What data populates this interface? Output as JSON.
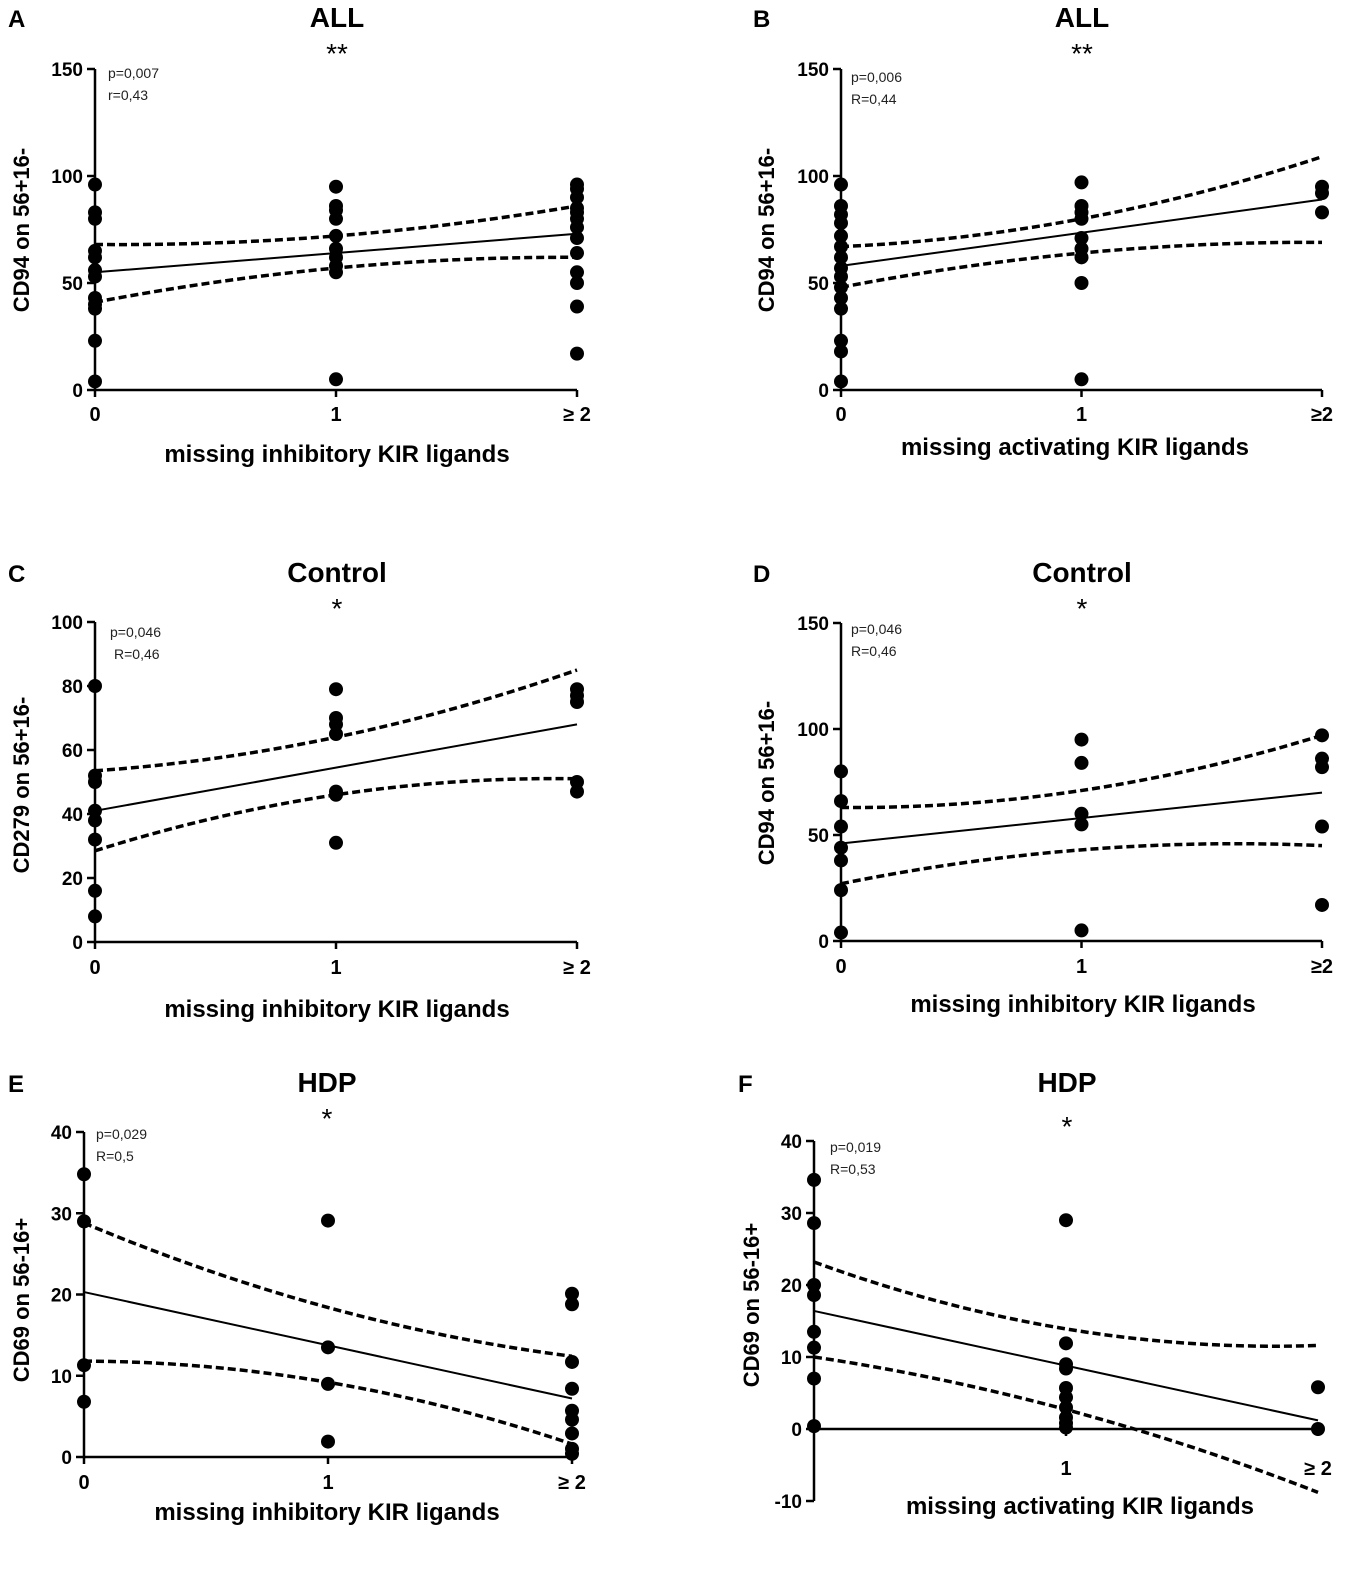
{
  "chart_data": [
    {
      "panel": "A",
      "type": "scatter",
      "title": "ALL",
      "significance": "**",
      "stats": [
        "p=0,007",
        "r=0,43"
      ],
      "ylabel": "CD94 on 56+16-",
      "xlabel": "missing inhibitory KIR ligands",
      "x_ticks": [
        "0",
        "1",
        "≥ 2"
      ],
      "x_range": [
        0,
        2
      ],
      "y_ticks": [
        0,
        50,
        100,
        150
      ],
      "ylim": [
        0,
        150
      ],
      "points": [
        [
          0,
          96
        ],
        [
          0,
          83
        ],
        [
          0,
          80
        ],
        [
          0,
          65
        ],
        [
          0,
          62
        ],
        [
          0,
          56
        ],
        [
          0,
          53
        ],
        [
          0,
          43
        ],
        [
          0,
          40
        ],
        [
          0,
          38
        ],
        [
          0,
          23
        ],
        [
          0,
          4
        ],
        [
          1,
          95
        ],
        [
          1,
          86
        ],
        [
          1,
          84
        ],
        [
          1,
          80
        ],
        [
          1,
          72
        ],
        [
          1,
          66
        ],
        [
          1,
          62
        ],
        [
          1,
          58
        ],
        [
          1,
          55
        ],
        [
          1,
          5
        ],
        [
          2,
          96
        ],
        [
          2,
          94
        ],
        [
          2,
          90
        ],
        [
          2,
          85
        ],
        [
          2,
          83
        ],
        [
          2,
          80
        ],
        [
          2,
          76
        ],
        [
          2,
          71
        ],
        [
          2,
          64
        ],
        [
          2,
          55
        ],
        [
          2,
          50
        ],
        [
          2,
          39
        ],
        [
          2,
          17
        ]
      ],
      "fit": [
        [
          0,
          55
        ],
        [
          2,
          73
        ]
      ],
      "ci_upper": [
        [
          0,
          68
        ],
        [
          1,
          72
        ],
        [
          2,
          86
        ]
      ],
      "ci_lower": [
        [
          0,
          41
        ],
        [
          1,
          57
        ],
        [
          2,
          62
        ]
      ]
    },
    {
      "panel": "B",
      "type": "scatter",
      "title": "ALL",
      "significance": "**",
      "stats": [
        "p=0,006",
        "R=0,44"
      ],
      "ylabel": "CD94 on 56+16-",
      "xlabel": "missing activating KIR ligands",
      "x_ticks": [
        "0",
        "1",
        "≥2"
      ],
      "x_range": [
        0,
        2
      ],
      "y_ticks": [
        0,
        50,
        100,
        150
      ],
      "ylim": [
        0,
        150
      ],
      "points": [
        [
          0,
          96
        ],
        [
          0,
          86
        ],
        [
          0,
          82
        ],
        [
          0,
          78
        ],
        [
          0,
          72
        ],
        [
          0,
          67
        ],
        [
          0,
          62
        ],
        [
          0,
          57
        ],
        [
          0,
          53
        ],
        [
          0,
          48
        ],
        [
          0,
          43
        ],
        [
          0,
          38
        ],
        [
          0,
          23
        ],
        [
          0,
          18
        ],
        [
          0,
          4
        ],
        [
          1,
          97
        ],
        [
          1,
          86
        ],
        [
          1,
          83
        ],
        [
          1,
          80
        ],
        [
          1,
          71
        ],
        [
          1,
          66
        ],
        [
          1,
          62
        ],
        [
          1,
          50
        ],
        [
          1,
          5
        ],
        [
          2,
          95
        ],
        [
          2,
          92
        ],
        [
          2,
          83
        ]
      ],
      "fit": [
        [
          0,
          58
        ],
        [
          2,
          89
        ]
      ],
      "ci_upper": [
        [
          0,
          67
        ],
        [
          1,
          80
        ],
        [
          2,
          109
        ]
      ],
      "ci_lower": [
        [
          0,
          48
        ],
        [
          1,
          64
        ],
        [
          2,
          69
        ]
      ]
    },
    {
      "panel": "C",
      "type": "scatter",
      "title": "Control",
      "significance": "*",
      "stats": [
        "p=0,046",
        "R=0,46"
      ],
      "ylabel": "CD279 on 56+16-",
      "xlabel": "missing inhibitory KIR ligands",
      "x_ticks": [
        "0",
        "1",
        "≥ 2"
      ],
      "x_range": [
        0,
        2
      ],
      "y_ticks": [
        0,
        20,
        40,
        60,
        80,
        100
      ],
      "ylim": [
        0,
        100
      ],
      "points": [
        [
          0,
          80
        ],
        [
          0,
          52
        ],
        [
          0,
          50
        ],
        [
          0,
          41
        ],
        [
          0,
          38
        ],
        [
          0,
          32
        ],
        [
          0,
          16
        ],
        [
          0,
          8
        ],
        [
          1,
          79
        ],
        [
          1,
          70
        ],
        [
          1,
          68
        ],
        [
          1,
          65
        ],
        [
          1,
          47
        ],
        [
          1,
          46
        ],
        [
          1,
          31
        ],
        [
          2,
          79
        ],
        [
          2,
          77
        ],
        [
          2,
          75
        ],
        [
          2,
          50
        ],
        [
          2,
          47
        ]
      ],
      "fit": [
        [
          0,
          41
        ],
        [
          2,
          68
        ]
      ],
      "ci_upper": [
        [
          0,
          53.5
        ],
        [
          1,
          64
        ],
        [
          2,
          85
        ]
      ],
      "ci_lower": [
        [
          0,
          28.5
        ],
        [
          1,
          46
        ],
        [
          2,
          51
        ]
      ]
    },
    {
      "panel": "D",
      "type": "scatter",
      "title": "Control",
      "significance": "*",
      "stats": [
        "p=0,046",
        "R=0,46"
      ],
      "ylabel": "CD94 on 56+16-",
      "xlabel": "missing inhibitory KIR ligands",
      "x_ticks": [
        "0",
        "1",
        "≥2"
      ],
      "x_range": [
        0,
        2
      ],
      "y_ticks": [
        0,
        50,
        100,
        150
      ],
      "ylim": [
        0,
        150
      ],
      "points": [
        [
          0,
          80
        ],
        [
          0,
          66
        ],
        [
          0,
          54
        ],
        [
          0,
          44
        ],
        [
          0,
          38
        ],
        [
          0,
          24
        ],
        [
          0,
          4
        ],
        [
          1,
          95
        ],
        [
          1,
          84
        ],
        [
          1,
          60
        ],
        [
          1,
          55
        ],
        [
          1,
          5
        ],
        [
          2,
          97
        ],
        [
          2,
          86
        ],
        [
          2,
          82
        ],
        [
          2,
          54
        ],
        [
          2,
          17
        ]
      ],
      "fit": [
        [
          0,
          46
        ],
        [
          2,
          70
        ]
      ],
      "ci_upper": [
        [
          0,
          63
        ],
        [
          1,
          71
        ],
        [
          2,
          97
        ]
      ],
      "ci_lower": [
        [
          0,
          27
        ],
        [
          1,
          43
        ],
        [
          2,
          45
        ]
      ]
    },
    {
      "panel": "E",
      "type": "scatter",
      "title": "HDP",
      "significance": "*",
      "stats": [
        "p=0,029",
        "R=0,5"
      ],
      "ylabel": "CD69 on 56-16+",
      "xlabel": "missing inhibitory KIR ligands",
      "x_ticks": [
        "0",
        "1",
        "≥ 2"
      ],
      "x_range": [
        0,
        2
      ],
      "y_ticks": [
        0,
        10,
        20,
        30,
        40
      ],
      "ylim": [
        0,
        40
      ],
      "points": [
        [
          0,
          34.8
        ],
        [
          0,
          29
        ],
        [
          0,
          11.3
        ],
        [
          0,
          6.8
        ],
        [
          1,
          29.1
        ],
        [
          1,
          13.5
        ],
        [
          1,
          9
        ],
        [
          1,
          1.9
        ],
        [
          2,
          20.1
        ],
        [
          2,
          18.8
        ],
        [
          2,
          11.7
        ],
        [
          2,
          8.4
        ],
        [
          2,
          5.7
        ],
        [
          2,
          4.6
        ],
        [
          2,
          2.9
        ],
        [
          2,
          1
        ],
        [
          2,
          0.4
        ]
      ],
      "fit": [
        [
          0,
          20.3
        ],
        [
          2,
          7.2
        ]
      ],
      "ci_upper": [
        [
          0,
          28.8
        ],
        [
          1,
          18.4
        ],
        [
          2,
          12.4
        ]
      ],
      "ci_lower": [
        [
          0,
          11.8
        ],
        [
          1,
          9.2
        ],
        [
          2,
          1.6
        ]
      ]
    },
    {
      "panel": "F",
      "type": "scatter",
      "title": "HDP",
      "significance": "*",
      "stats": [
        "p=0,019",
        "R=0,53"
      ],
      "ylabel": "CD69 on 56-16+",
      "xlabel": "missing activating KIR ligands",
      "x_ticks": [
        "1",
        "≥ 2"
      ],
      "x_range": [
        0,
        2
      ],
      "y_ticks": [
        -10,
        0,
        10,
        20,
        30,
        40
      ],
      "ylim": [
        -10,
        40
      ],
      "points": [
        [
          0,
          34.6
        ],
        [
          0,
          28.6
        ],
        [
          0,
          20
        ],
        [
          0,
          18.6
        ],
        [
          0,
          13.5
        ],
        [
          0,
          11.3
        ],
        [
          0,
          7
        ],
        [
          0,
          0.4
        ],
        [
          1,
          29
        ],
        [
          1,
          11.9
        ],
        [
          1,
          9
        ],
        [
          1,
          8.4
        ],
        [
          1,
          5.7
        ],
        [
          1,
          4.4
        ],
        [
          1,
          3
        ],
        [
          1,
          1.6
        ],
        [
          1,
          0.8
        ],
        [
          1,
          0.2
        ],
        [
          2,
          5.8
        ],
        [
          2,
          0
        ]
      ],
      "fit": [
        [
          0,
          16.4
        ],
        [
          2,
          1.2
        ]
      ],
      "ci_upper": [
        [
          0,
          23.2
        ],
        [
          1,
          13.9
        ],
        [
          2,
          11.6
        ]
      ],
      "ci_lower": [
        [
          0,
          10
        ],
        [
          1,
          2.7
        ],
        [
          2,
          -8.8
        ]
      ]
    }
  ]
}
